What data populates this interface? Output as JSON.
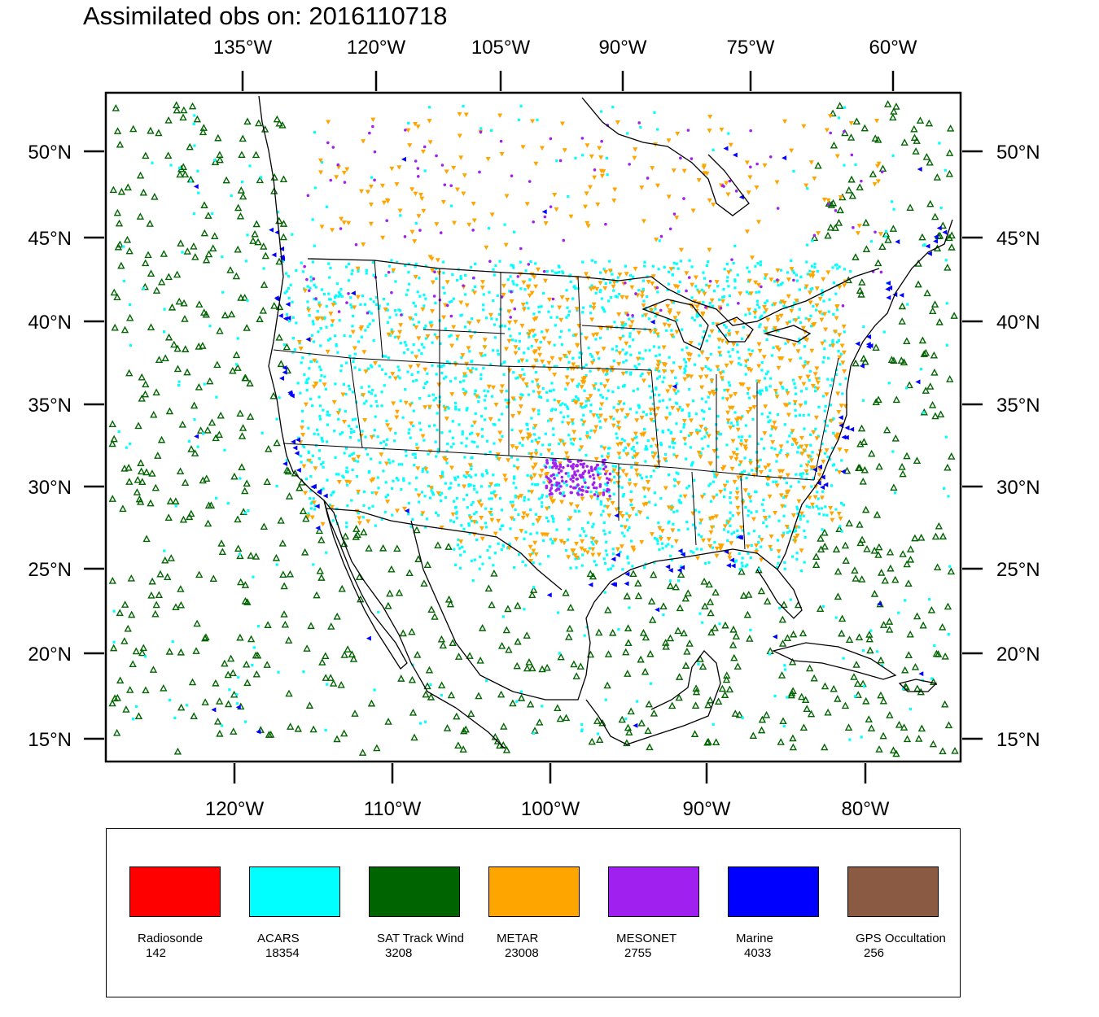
{
  "title": "Assimilated obs on: 2016110718",
  "map": {
    "region": "CONUS and surrounding waters",
    "lon_range": [
      "128°W",
      "74°W"
    ],
    "lat_range": [
      "14°N",
      "53°N"
    ],
    "top_axis_labels": [
      "135°W",
      "120°W",
      "105°W",
      "90°W",
      "75°W",
      "60°W"
    ],
    "bottom_axis_labels": [
      "120°W",
      "110°W",
      "100°W",
      "90°W",
      "80°W"
    ],
    "left_axis_labels": [
      "50°N",
      "45°N",
      "40°N",
      "35°N",
      "30°N",
      "25°N",
      "20°N",
      "15°N"
    ],
    "right_axis_labels": [
      "50°N",
      "45°N",
      "40°N",
      "35°N",
      "30°N",
      "25°N",
      "20°N",
      "15°N"
    ]
  },
  "legend": [
    {
      "name": "Radiosonde",
      "count": "142",
      "color": "#ff0000"
    },
    {
      "name": "ACARS",
      "count": "18354",
      "color": "#00ffff"
    },
    {
      "name": "SAT Track Wind",
      "count": "3208",
      "color": "#006400"
    },
    {
      "name": "METAR",
      "count": "23008",
      "color": "#ffa500"
    },
    {
      "name": "MESONET",
      "count": "2755",
      "color": "#a020f0"
    },
    {
      "name": "Marine",
      "count": "4033",
      "color": "#0000ff"
    },
    {
      "name": "GPS Occultation",
      "count": "256",
      "color": "#8b5a42"
    }
  ]
}
